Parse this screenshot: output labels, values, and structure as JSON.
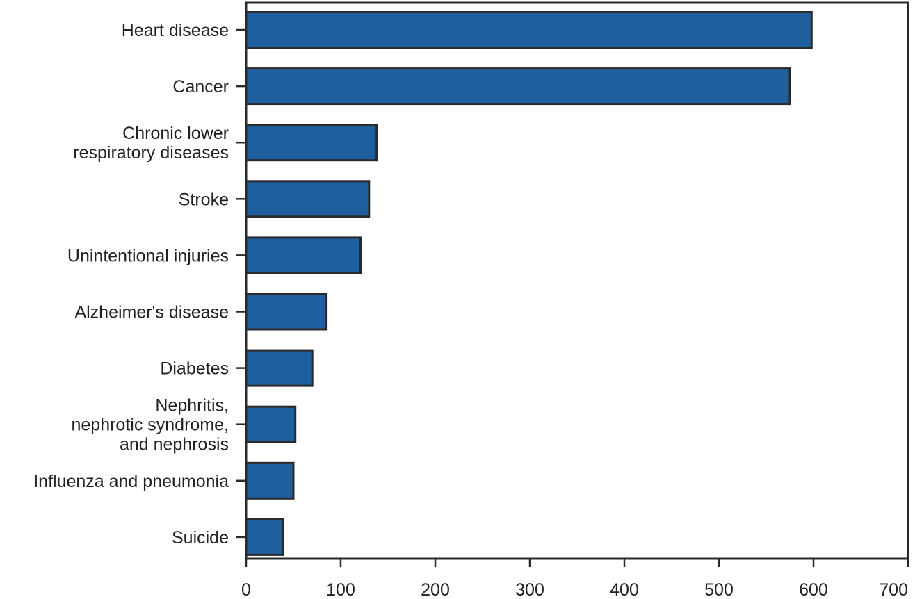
{
  "chart_data": {
    "type": "bar",
    "orientation": "horizontal",
    "title": "",
    "xlabel": "",
    "ylabel": "",
    "categories": [
      [
        "Heart disease"
      ],
      [
        "Cancer"
      ],
      [
        "Chronic lower",
        "respiratory diseases"
      ],
      [
        "Stroke"
      ],
      [
        "Unintentional injuries"
      ],
      [
        "Alzheimer's disease"
      ],
      [
        "Diabetes"
      ],
      [
        "Nephritis,",
        "nephrotic syndrome,",
        "and nephrosis"
      ],
      [
        "Influenza and pneumonia"
      ],
      [
        "Suicide"
      ]
    ],
    "values": [
      598,
      575,
      138,
      130,
      121,
      85,
      70,
      52,
      50,
      39
    ],
    "xlim": [
      0,
      700
    ],
    "xticks": [
      0,
      100,
      200,
      300,
      400,
      500,
      600,
      700
    ],
    "bar_color": "#1f5f9e",
    "edge_color": "#2a2a2a",
    "grid": false,
    "legend": "none"
  }
}
